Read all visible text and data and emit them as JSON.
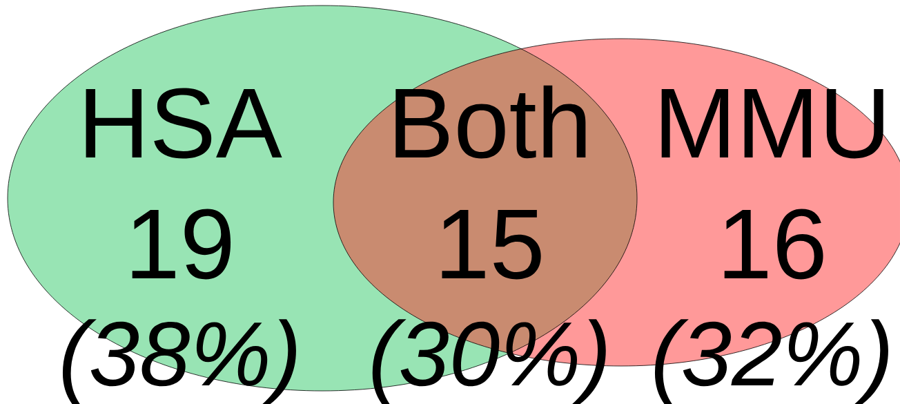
{
  "chart_data": {
    "type": "other",
    "categories": [
      "HSA",
      "Both",
      "MMU"
    ],
    "values": [
      38,
      30,
      32
    ],
    "annotations": [
      "19",
      "15",
      "16"
    ],
    "value_labels": [
      "(38%)",
      "(30%)",
      "(32%)"
    ],
    "colors": [
      "#98e4b4",
      "#c98b70",
      "#ff9999"
    ]
  }
}
